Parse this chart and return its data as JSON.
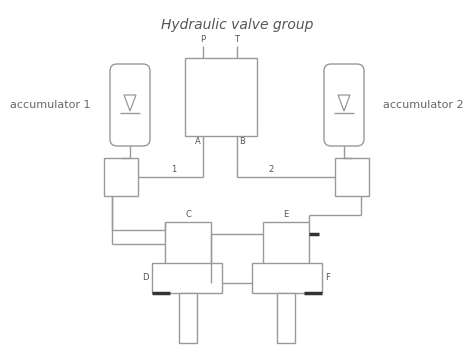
{
  "title": "Hydraulic valve group",
  "bg_color": "#ffffff",
  "line_color": "#999999",
  "line_color_dark": "#555555",
  "lw": 1.0,
  "lw_thick": 2.5,
  "acc1_label": "accumulator 1",
  "acc2_label": "accumulator 2"
}
